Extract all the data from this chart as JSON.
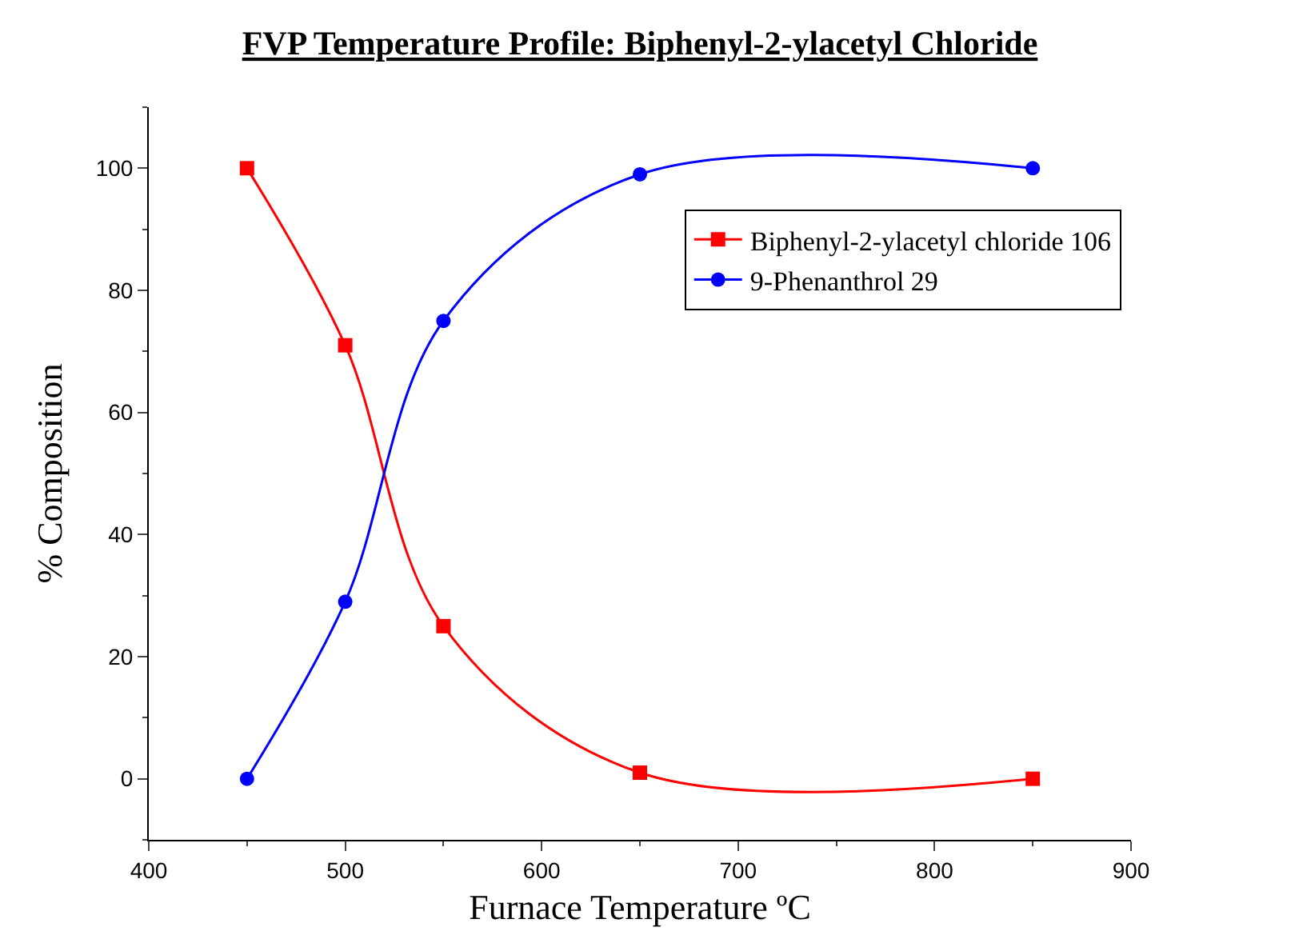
{
  "chart_data": {
    "type": "line",
    "title": "FVP Temperature Profile: Biphenyl-2-ylacetyl Chloride",
    "xlabel": "Furnace Temperature ºC",
    "ylabel": "% Composition",
    "x": [
      450,
      500,
      550,
      650,
      850
    ],
    "series": [
      {
        "name": "Biphenyl-2-ylacetyl chloride 106",
        "color": "#ff0000",
        "marker": "square",
        "values": [
          100,
          71,
          25,
          1,
          0
        ]
      },
      {
        "name": "9-Phenanthrol 29",
        "color": "#0000ff",
        "marker": "circle",
        "values": [
          0,
          29,
          75,
          99,
          100
        ]
      }
    ],
    "xlim": [
      400,
      900
    ],
    "xticks": [
      400,
      500,
      600,
      700,
      800,
      900
    ],
    "ylim": [
      -10,
      110
    ],
    "yticks": [
      0,
      20,
      40,
      60,
      80,
      100
    ],
    "grid": false,
    "legend": "top right",
    "line_style": "solid"
  }
}
